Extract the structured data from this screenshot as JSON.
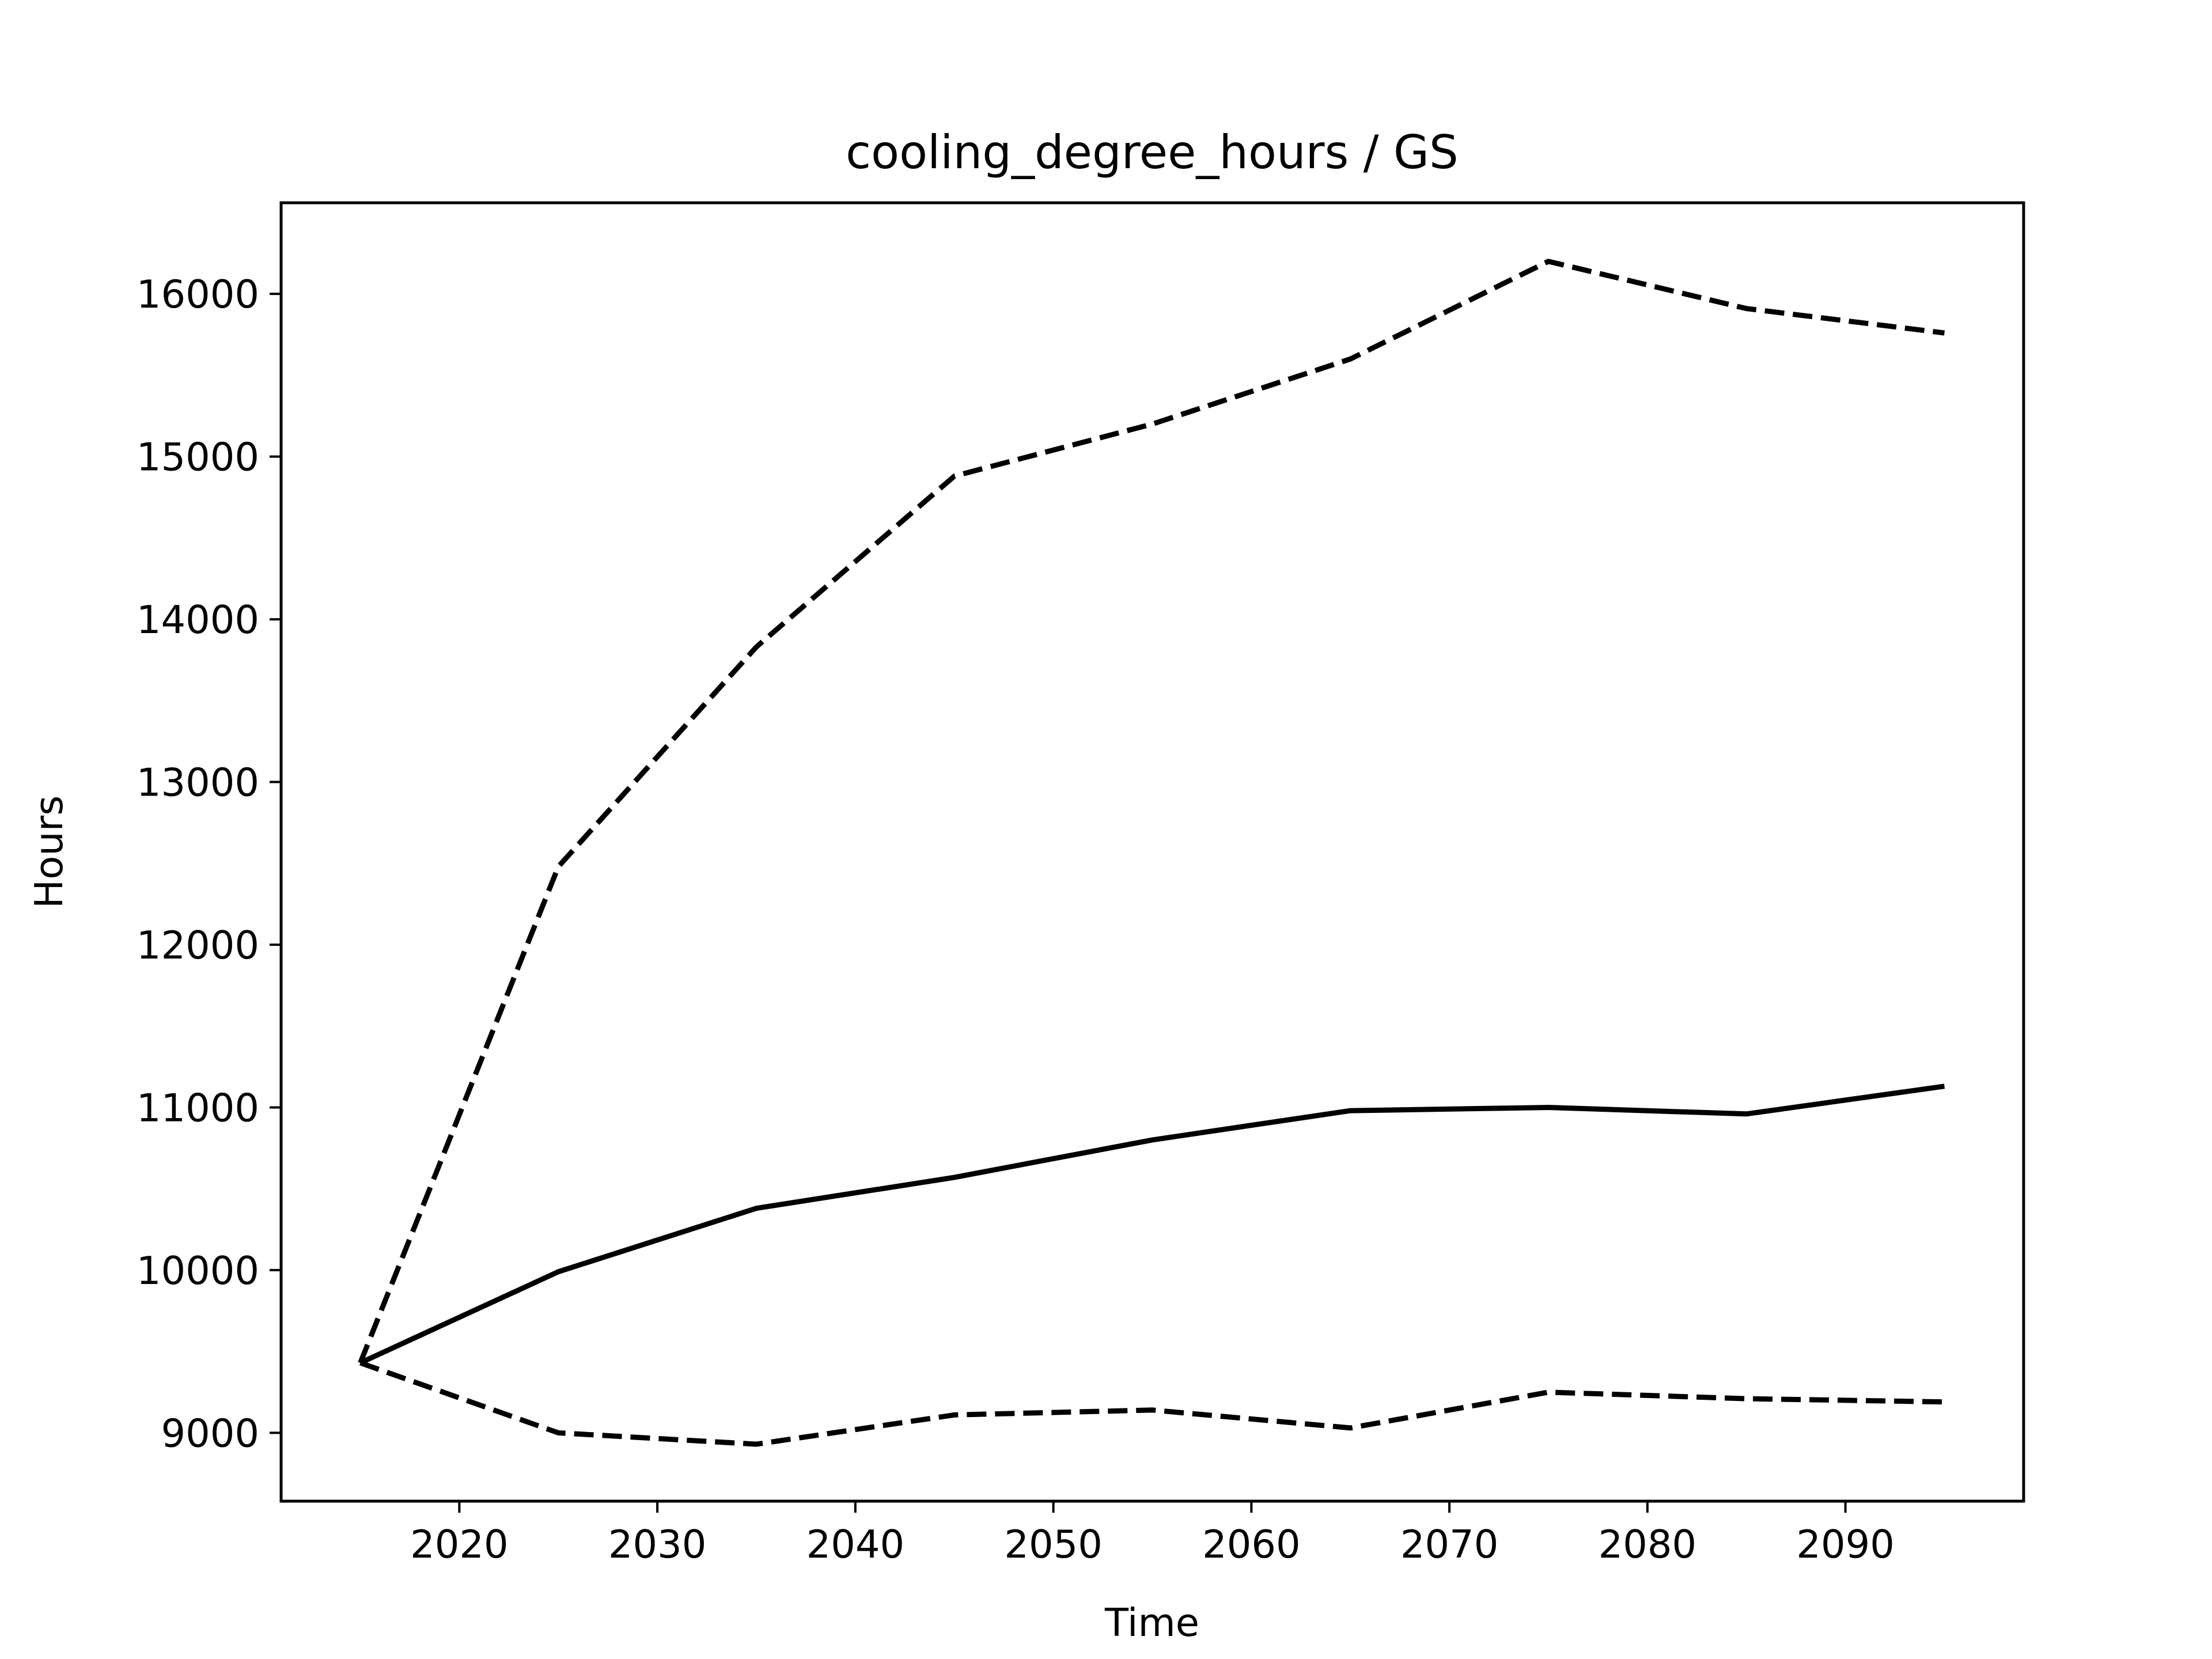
{
  "chart_data": {
    "type": "line",
    "title": "cooling_degree_hours / GS",
    "xlabel": "Time",
    "ylabel": "Hours",
    "xlim": [
      2011,
      2099
    ],
    "ylim": [
      8580,
      16560
    ],
    "xticks": [
      2020,
      2030,
      2040,
      2050,
      2060,
      2070,
      2080,
      2090
    ],
    "yticks": [
      9000,
      10000,
      11000,
      12000,
      13000,
      14000,
      15000,
      16000
    ],
    "grid": false,
    "legend": "none",
    "x": [
      2015,
      2025,
      2035,
      2045,
      2055,
      2065,
      2075,
      2085,
      2095
    ],
    "series": [
      {
        "style": "solid",
        "color": "#000000",
        "values": [
          9430,
          9990,
          10380,
          10570,
          10800,
          10980,
          11000,
          10960,
          11130
        ]
      },
      {
        "style": "dashed",
        "color": "#000000",
        "values": [
          9430,
          12480,
          13830,
          14880,
          15200,
          15600,
          16200,
          15910,
          15760
        ]
      },
      {
        "style": "dashed",
        "color": "#000000",
        "values": [
          9430,
          9000,
          8930,
          9110,
          9140,
          9030,
          9250,
          9210,
          9190
        ]
      }
    ]
  }
}
